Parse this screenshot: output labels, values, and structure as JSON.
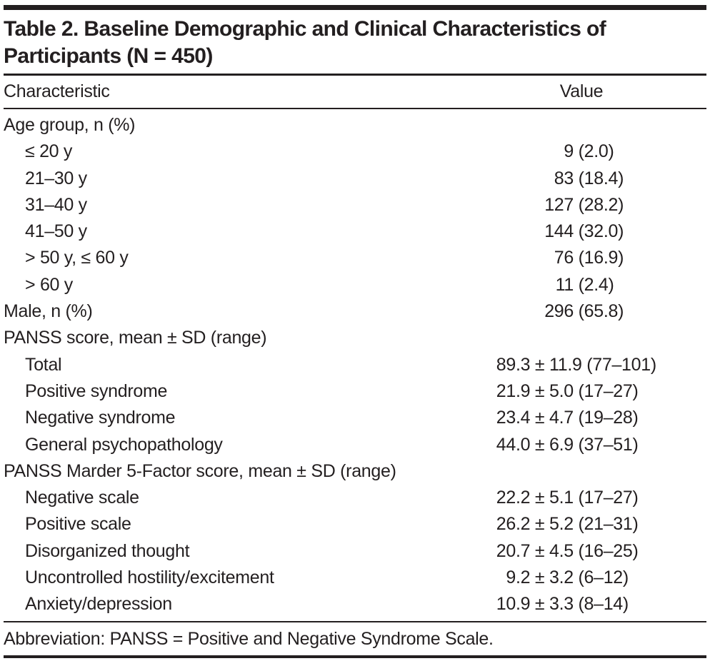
{
  "table": {
    "title_lines": [
      "Table 2. Baseline Demographic and Clinical Characteristics of",
      "Participants (N = 450)"
    ],
    "columns": {
      "characteristic": "Characteristic",
      "value": "Value"
    },
    "rows": [
      {
        "label": "Age group, n (%)",
        "indent": 0,
        "group": "count",
        "value": ""
      },
      {
        "label": "≤ 20 y",
        "indent": 1,
        "group": "count",
        "value": "9 (2.0)"
      },
      {
        "label": "21–30 y",
        "indent": 1,
        "group": "count",
        "value": "83 (18.4)"
      },
      {
        "label": "31–40 y",
        "indent": 1,
        "group": "count",
        "value": "127 (28.2)"
      },
      {
        "label": "41–50 y",
        "indent": 1,
        "group": "count",
        "value": "144 (32.0)"
      },
      {
        "label": "> 50 y, ≤ 60 y",
        "indent": 1,
        "group": "count",
        "value": "76 (16.9)"
      },
      {
        "label": "> 60 y",
        "indent": 1,
        "group": "count",
        "value": "11 (2.4)"
      },
      {
        "label": "Male, n (%)",
        "indent": 0,
        "group": "count",
        "value": "296 (65.8)"
      },
      {
        "label": "PANSS score, mean ± SD (range)",
        "indent": 0,
        "group": "stat",
        "value": ""
      },
      {
        "label": "Total",
        "indent": 1,
        "group": "stat",
        "value": "89.3 ± 11.9 (77–101)"
      },
      {
        "label": "Positive syndrome",
        "indent": 1,
        "group": "stat",
        "value": "21.9 ± 5.0 (17–27)"
      },
      {
        "label": "Negative syndrome",
        "indent": 1,
        "group": "stat",
        "value": "23.4 ± 4.7 (19–28)"
      },
      {
        "label": "General psychopathology",
        "indent": 1,
        "group": "stat",
        "value": "44.0 ± 6.9 (37–51)"
      },
      {
        "label": "PANSS Marder 5-Factor score, mean ± SD (range)",
        "indent": 0,
        "group": "stat",
        "value": ""
      },
      {
        "label": "Negative scale",
        "indent": 1,
        "group": "stat",
        "value": "22.2 ± 5.1 (17–27)"
      },
      {
        "label": "Positive scale",
        "indent": 1,
        "group": "stat",
        "value": "26.2 ± 5.2 (21–31)"
      },
      {
        "label": "Disorganized thought",
        "indent": 1,
        "group": "stat",
        "value": "20.7 ± 4.5 (16–25)"
      },
      {
        "label": "Uncontrolled hostility/excitement",
        "indent": 1,
        "group": "stat",
        "value": "9.2 ± 3.2 (6–12)"
      },
      {
        "label": "Anxiety/depression",
        "indent": 1,
        "group": "stat",
        "value": "10.9 ± 3.3 (8–14)"
      }
    ],
    "footer": "Abbreviation: PANSS = Positive and Negative Syndrome Scale."
  }
}
